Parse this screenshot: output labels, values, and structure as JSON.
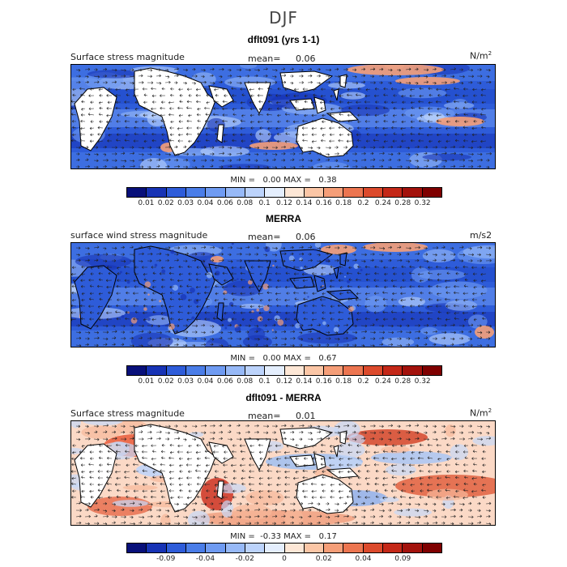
{
  "figure": {
    "title": "DJF"
  },
  "colorbar_colors": [
    "#08107a",
    "#1733b5",
    "#2e5cd9",
    "#4a7de8",
    "#6f9bf2",
    "#97b9f7",
    "#bcd3fb",
    "#e4eefd",
    "#fde7d6",
    "#fbc6a6",
    "#f59e78",
    "#ec7550",
    "#dc4a2c",
    "#c42818",
    "#a3120c",
    "#7f0000"
  ],
  "panels": [
    {
      "title": "dflt091 (yrs 1-1)",
      "left_label": "Surface stress magnitude",
      "mean_label": "mean=",
      "mean_value": "0.06",
      "units": "N/m",
      "units_sup": "2",
      "min_label": "MIN =",
      "min_value": "0.00",
      "max_label": "MAX =",
      "max_value": "0.38",
      "colorbar_ticks": [
        "0.01",
        "0.02",
        "0.03",
        "0.04",
        "0.06",
        "0.08",
        "0.1",
        "0.12",
        "0.14",
        "0.16",
        "0.18",
        "0.2",
        "0.24",
        "0.28",
        "0.32"
      ]
    },
    {
      "title": "MERRA",
      "left_label": "surface wind stress magnitude",
      "mean_label": "mean=",
      "mean_value": "0.06",
      "units": "m/s2",
      "units_sup": "",
      "min_label": "MIN =",
      "min_value": "0.00",
      "max_label": "MAX =",
      "max_value": "0.67",
      "colorbar_ticks": [
        "0.01",
        "0.02",
        "0.03",
        "0.04",
        "0.06",
        "0.08",
        "0.1",
        "0.12",
        "0.14",
        "0.16",
        "0.18",
        "0.2",
        "0.24",
        "0.28",
        "0.32"
      ]
    },
    {
      "title": "dflt091 - MERRA",
      "left_label": "Surface stress magnitude",
      "mean_label": "mean=",
      "mean_value": "0.01",
      "units": "N/m",
      "units_sup": "2",
      "min_label": "MIN =",
      "min_value": "-0.33",
      "max_label": "MAX =",
      "max_value": "0.17",
      "colorbar_ticks": [
        "-0.09",
        "-0.04",
        "-0.02",
        "0",
        "0.02",
        "0.04",
        "0.09"
      ]
    }
  ]
}
